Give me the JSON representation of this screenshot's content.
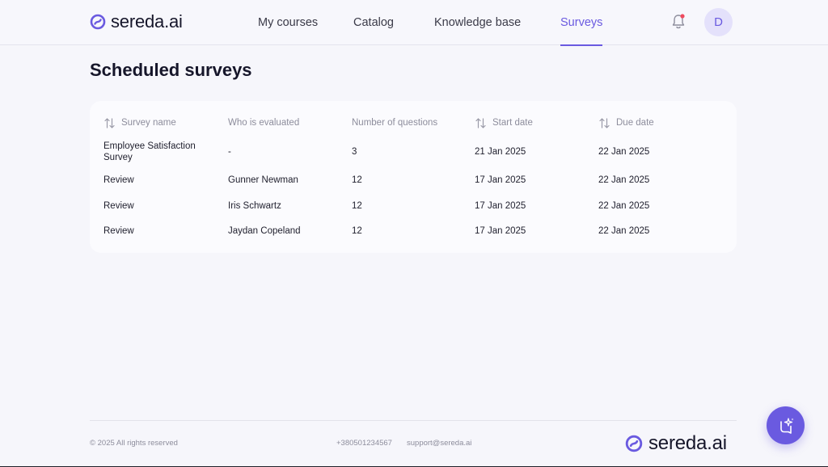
{
  "brand": {
    "name": "sereda.ai",
    "accent": "#6a5ae0"
  },
  "nav": {
    "items": [
      {
        "label": "My courses"
      },
      {
        "label": "Catalog"
      },
      {
        "label": "Knowledge base"
      },
      {
        "label": "Surveys",
        "active": true
      }
    ]
  },
  "header": {
    "avatar_initial": "D",
    "notification_icon": "bell-icon"
  },
  "page": {
    "title": "Scheduled surveys"
  },
  "table": {
    "columns": [
      {
        "label": "Survey name",
        "sortable": true
      },
      {
        "label": "Who is evaluated",
        "sortable": false
      },
      {
        "label": "Number of questions",
        "sortable": false
      },
      {
        "label": "Start date",
        "sortable": true
      },
      {
        "label": "Due date",
        "sortable": true
      }
    ],
    "rows": [
      [
        "Employee Satisfaction Survey",
        "-",
        "3",
        "21 Jan 2025",
        "22 Jan 2025"
      ],
      [
        "Review",
        "Gunner Newman",
        "12",
        "17 Jan 2025",
        "22 Jan 2025"
      ],
      [
        "Review",
        "Iris Schwartz",
        "12",
        "17 Jan 2025",
        "22 Jan 2025"
      ],
      [
        "Review",
        "Jaydan Copeland",
        "12",
        "17 Jan 2025",
        "22 Jan 2025"
      ]
    ]
  },
  "footer": {
    "copyright": "© 2025 All rights reserved",
    "phone": "+380501234567",
    "email": "support@sereda.ai"
  },
  "assistant": {
    "icon": "ai-assistant-icon"
  }
}
